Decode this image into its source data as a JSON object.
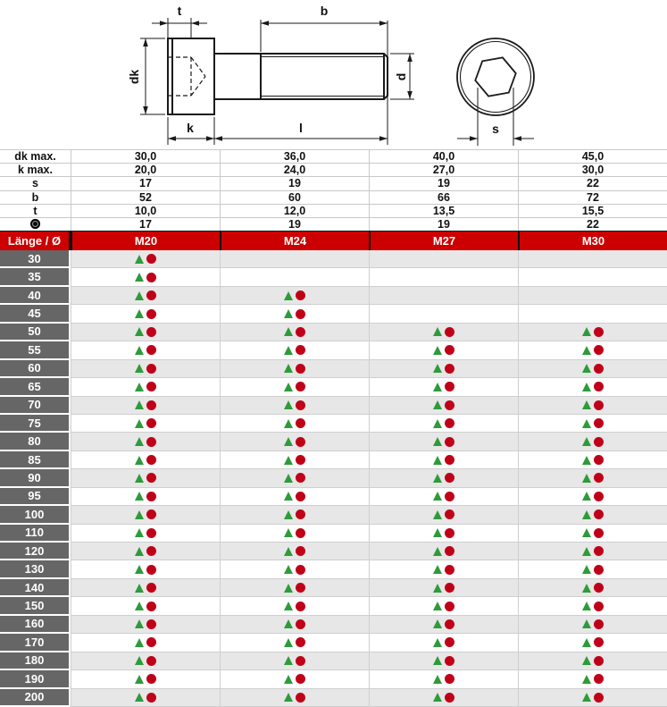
{
  "drawing": {
    "labels": {
      "t": "t",
      "b": "b",
      "dk": "dk",
      "d": "d",
      "k": "k",
      "l": "l",
      "s": "s"
    }
  },
  "table": {
    "spec_rows": [
      {
        "label": "dk max.",
        "values": [
          "30,0",
          "36,0",
          "40,0",
          "45,0"
        ]
      },
      {
        "label": "k max.",
        "values": [
          "20,0",
          "24,0",
          "27,0",
          "30,0"
        ]
      },
      {
        "label": "s",
        "values": [
          "17",
          "19",
          "19",
          "22"
        ]
      },
      {
        "label": "b",
        "values": [
          "52",
          "60",
          "66",
          "72"
        ]
      },
      {
        "label": "t",
        "values": [
          "10,0",
          "12,0",
          "13,5",
          "15,5"
        ]
      },
      {
        "label": "",
        "icon": "black-dot",
        "values": [
          "17",
          "19",
          "19",
          "22"
        ]
      }
    ],
    "header": {
      "label": "Länge / Ø",
      "columns": [
        "M20",
        "M24",
        "M27",
        "M30"
      ]
    },
    "rows": [
      {
        "length": "30",
        "available": [
          true,
          false,
          false,
          false
        ]
      },
      {
        "length": "35",
        "available": [
          true,
          false,
          false,
          false
        ]
      },
      {
        "length": "40",
        "available": [
          true,
          true,
          false,
          false
        ]
      },
      {
        "length": "45",
        "available": [
          true,
          true,
          false,
          false
        ]
      },
      {
        "length": "50",
        "available": [
          true,
          true,
          true,
          true
        ]
      },
      {
        "length": "55",
        "available": [
          true,
          true,
          true,
          true
        ]
      },
      {
        "length": "60",
        "available": [
          true,
          true,
          true,
          true
        ]
      },
      {
        "length": "65",
        "available": [
          true,
          true,
          true,
          true
        ]
      },
      {
        "length": "70",
        "available": [
          true,
          true,
          true,
          true
        ]
      },
      {
        "length": "75",
        "available": [
          true,
          true,
          true,
          true
        ]
      },
      {
        "length": "80",
        "available": [
          true,
          true,
          true,
          true
        ]
      },
      {
        "length": "85",
        "available": [
          true,
          true,
          true,
          true
        ]
      },
      {
        "length": "90",
        "available": [
          true,
          true,
          true,
          true
        ]
      },
      {
        "length": "95",
        "available": [
          true,
          true,
          true,
          true
        ]
      },
      {
        "length": "100",
        "available": [
          true,
          true,
          true,
          true
        ]
      },
      {
        "length": "110",
        "available": [
          true,
          true,
          true,
          true
        ]
      },
      {
        "length": "120",
        "available": [
          true,
          true,
          true,
          true
        ]
      },
      {
        "length": "130",
        "available": [
          true,
          true,
          true,
          true
        ]
      },
      {
        "length": "140",
        "available": [
          true,
          true,
          true,
          true
        ]
      },
      {
        "length": "150",
        "available": [
          true,
          true,
          true,
          true
        ]
      },
      {
        "length": "160",
        "available": [
          true,
          true,
          true,
          true
        ]
      },
      {
        "length": "170",
        "available": [
          true,
          true,
          true,
          true
        ]
      },
      {
        "length": "180",
        "available": [
          true,
          true,
          true,
          true
        ]
      },
      {
        "length": "190",
        "available": [
          true,
          true,
          true,
          true
        ]
      },
      {
        "length": "200",
        "available": [
          true,
          true,
          true,
          true
        ]
      }
    ]
  },
  "markers": {
    "triangle_color": "#2E9B3A",
    "dot_color": "#C00018"
  },
  "colors": {
    "header_red": "#CC0000",
    "label_gray": "#666666",
    "row_alt": "#E7E7E7",
    "grid": "#CCCCCC",
    "line_black": "#1a1a1a"
  }
}
